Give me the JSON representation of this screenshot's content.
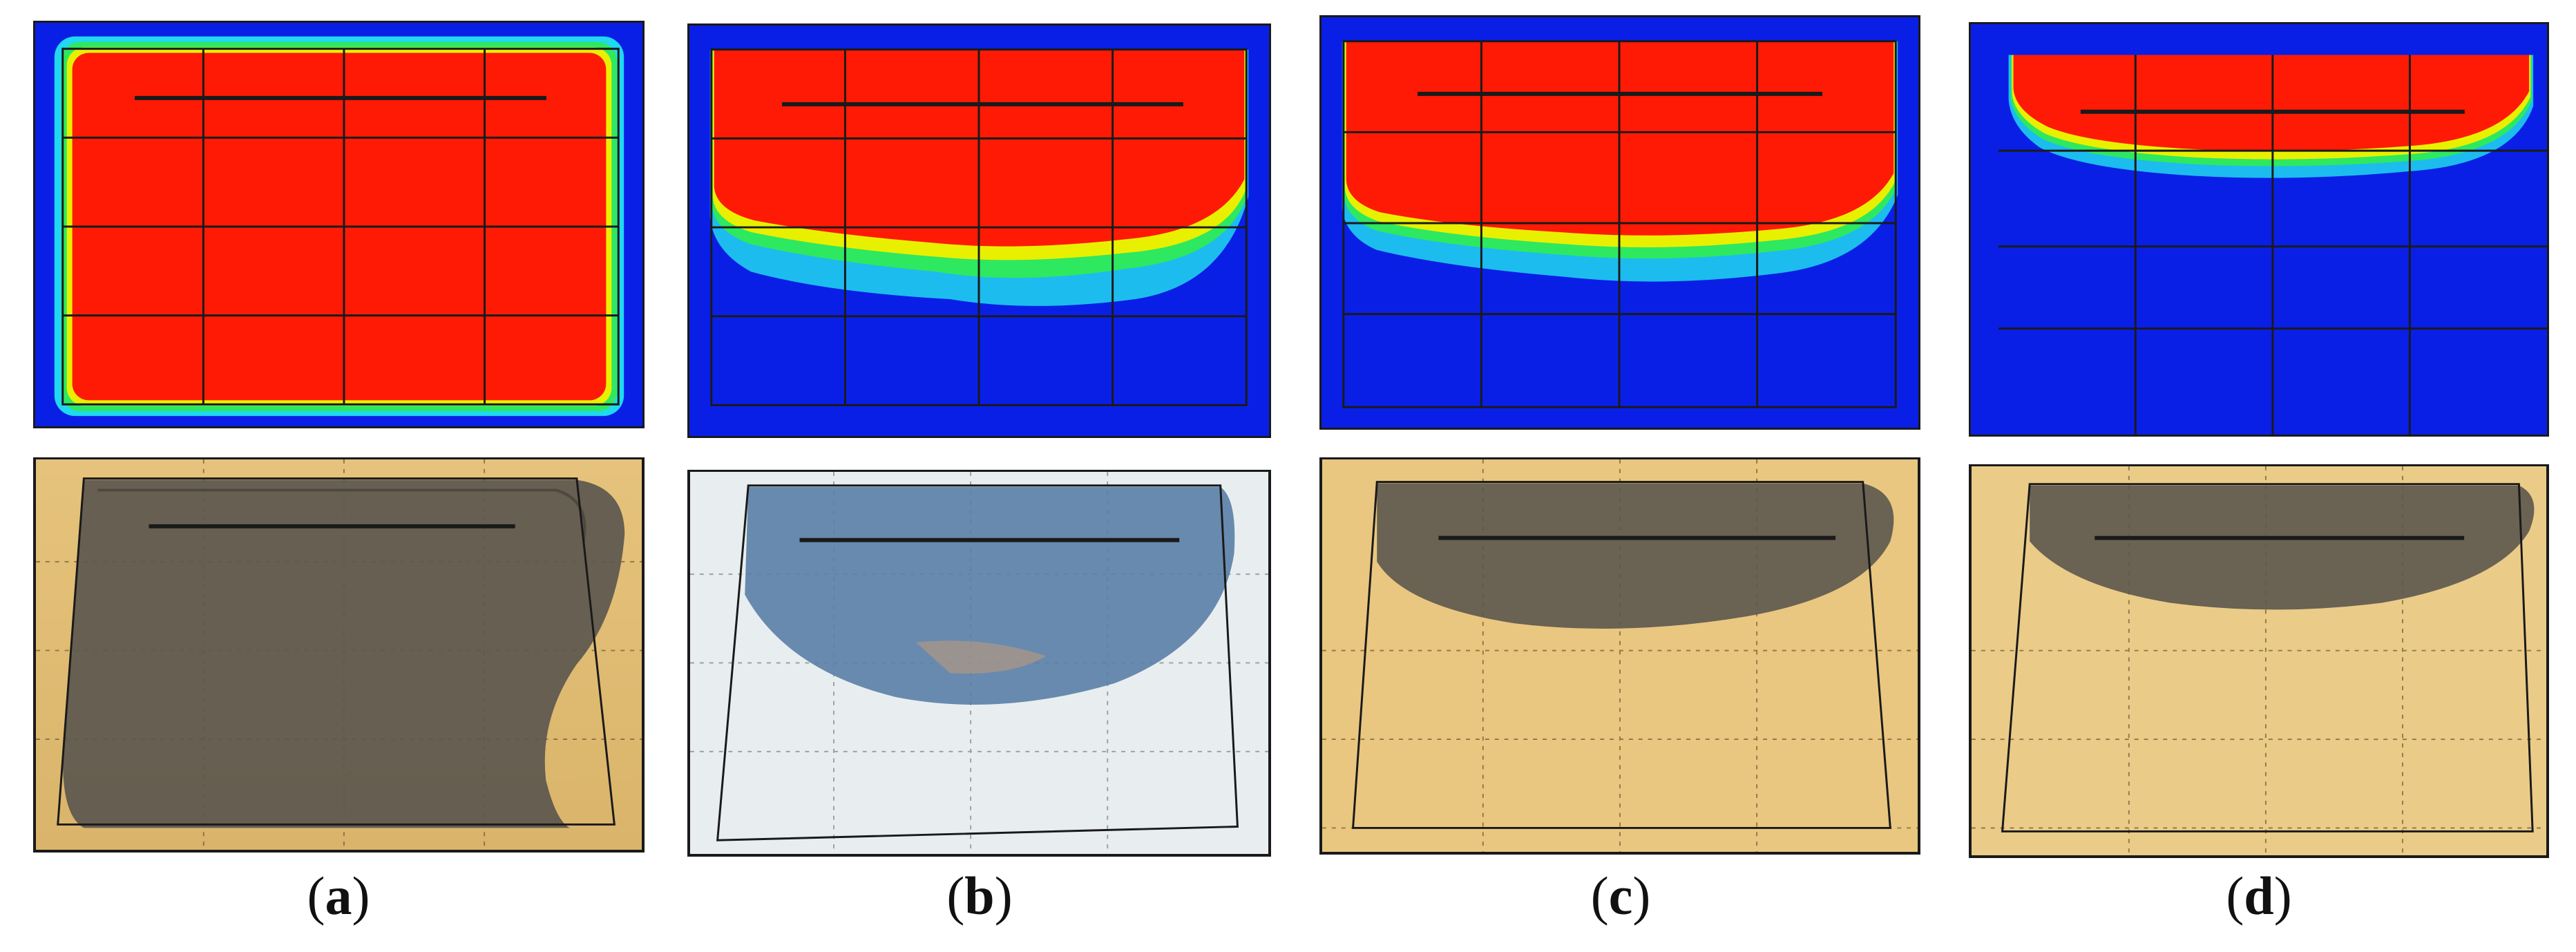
{
  "figure": {
    "panels": [
      {
        "id": "a",
        "caption_open": "(",
        "caption_letter": "a",
        "caption_close": ")",
        "red_fill_fraction": 1.0
      },
      {
        "id": "b",
        "caption_open": "(",
        "caption_letter": "b",
        "caption_close": ")",
        "red_fill_fraction": 0.48
      },
      {
        "id": "c",
        "caption_open": "(",
        "caption_letter": "c",
        "caption_close": ")",
        "red_fill_fraction": 0.45
      },
      {
        "id": "d",
        "caption_open": "(",
        "caption_letter": "d",
        "caption_close": ")",
        "red_fill_fraction": 0.22
      }
    ],
    "colors": {
      "sim_background": "#0a1fe6",
      "sim_fill": "#ff1a05",
      "sim_front_yellow": "#e8f000",
      "sim_front_green": "#2ee860",
      "sim_front_cyan": "#20d8f0",
      "photo_paper_tan": "#e9c780",
      "photo_paper_white": "#e8eef0",
      "photo_filled_dark": "#5c574e",
      "photo_filled_blue": "#5a7ea6",
      "grid_line": "#1a1a1a"
    }
  }
}
